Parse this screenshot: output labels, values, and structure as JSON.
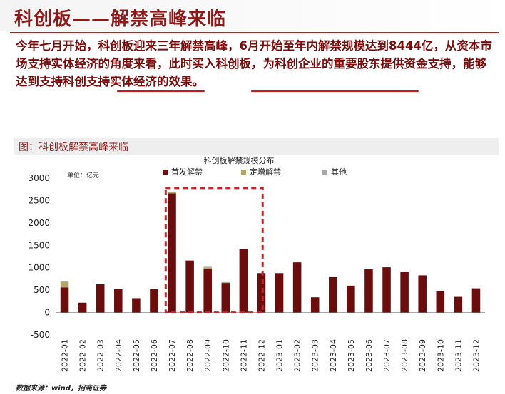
{
  "slide": {
    "title": "科创板——解禁高峰来临",
    "paragraph": "今年七月开始，科创板迎来三年解禁高峰，6月开始至年内解禁规模达到8444亿，从资本市场支持实体经济的角度来看，此时买入科创板，为科创企业的重要股东提供资金支持，能够达到支持科创支持实体经济的效果。",
    "figure_caption": "图：科创板解禁高峰来临",
    "source": "数据来源：wind，招商证券"
  },
  "colors": {
    "title": "#8b1a1a",
    "text": "#7a0c0c",
    "underline": "#d31515",
    "series_primary": "#6b0d0d",
    "series_placement": "#b5a46a",
    "series_other": "#a9a9a9",
    "highlight_box": "#c0282d"
  },
  "chart_data": {
    "type": "bar",
    "stacked": true,
    "title": "科创板解禁规模分布",
    "unit_label": "单位：亿元",
    "categories": [
      "2022-01",
      "2022-02",
      "2022-03",
      "2022-04",
      "2022-05",
      "2022-06",
      "2022-07",
      "2022-08",
      "2022-09",
      "2022-10",
      "2022-11",
      "2022-12",
      "2023-01",
      "2023-02",
      "2023-03",
      "2023-04",
      "2023-05",
      "2023-06",
      "2023-07",
      "2023-08",
      "2023-09",
      "2023-10",
      "2023-11",
      "2023-12"
    ],
    "series": [
      {
        "name": "首发解禁",
        "values": [
          560,
          220,
          630,
          520,
          320,
          530,
          2660,
          1160,
          970,
          660,
          1420,
          880,
          880,
          1120,
          340,
          790,
          600,
          970,
          1010,
          900,
          830,
          480,
          350,
          540
        ]
      },
      {
        "name": "定增解禁",
        "values": [
          120,
          0,
          0,
          0,
          0,
          0,
          30,
          0,
          30,
          10,
          0,
          0,
          0,
          0,
          0,
          0,
          0,
          0,
          0,
          0,
          0,
          0,
          0,
          0
        ]
      },
      {
        "name": "其他",
        "values": [
          20,
          0,
          0,
          0,
          0,
          0,
          0,
          0,
          20,
          10,
          0,
          0,
          0,
          0,
          0,
          0,
          0,
          0,
          0,
          0,
          0,
          0,
          0,
          0
        ]
      }
    ],
    "ylim": [
      -500,
      3000
    ],
    "yticks": [
      -500,
      0,
      500,
      1000,
      1500,
      2000,
      2500,
      3000
    ],
    "legend_position": "top",
    "grid": false,
    "highlight_range": [
      "2022-07",
      "2022-12"
    ]
  }
}
